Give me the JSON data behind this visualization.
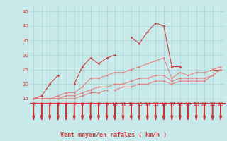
{
  "x_values": [
    0,
    1,
    2,
    3,
    4,
    5,
    6,
    7,
    8,
    9,
    10,
    11,
    12,
    13,
    14,
    15,
    16,
    17,
    18,
    19,
    20,
    21,
    22,
    23
  ],
  "line1_y": [
    15,
    16,
    20,
    23,
    null,
    20,
    26,
    29,
    27,
    29,
    30,
    null,
    36,
    34,
    38,
    41,
    40,
    26,
    26,
    null,
    null,
    null,
    25,
    25
  ],
  "line2_y": [
    15,
    15,
    15,
    16,
    17,
    17,
    19,
    22,
    22,
    23,
    24,
    24,
    25,
    26,
    27,
    28,
    29,
    22,
    24,
    23,
    24,
    24,
    25,
    26
  ],
  "line3_y": [
    15,
    15,
    15,
    15,
    16,
    16,
    17,
    18,
    19,
    19,
    20,
    20,
    21,
    22,
    22,
    23,
    23,
    21,
    22,
    22,
    22,
    22,
    23,
    25
  ],
  "line4_y": [
    15,
    15,
    15,
    15,
    15,
    15,
    16,
    17,
    17,
    18,
    18,
    19,
    19,
    20,
    20,
    21,
    21,
    20,
    21,
    21,
    21,
    21,
    23,
    25
  ],
  "line_color": "#e87878",
  "line_color_dark": "#cc4444",
  "bg_color": "#c8eaea",
  "grid_color": "#a8cccc",
  "axis_color": "#cc3333",
  "ylim": [
    14,
    47
  ],
  "xlim": [
    -0.5,
    23.5
  ],
  "yticks": [
    15,
    20,
    25,
    30,
    35,
    40,
    45
  ],
  "xticks": [
    0,
    1,
    2,
    3,
    4,
    5,
    6,
    7,
    8,
    9,
    10,
    11,
    12,
    13,
    14,
    15,
    16,
    17,
    18,
    19,
    20,
    21,
    22,
    23
  ],
  "xlabel": "Vent moyen/en rafales ( km/h )",
  "tick_fontsize": 5,
  "xlabel_fontsize": 6
}
